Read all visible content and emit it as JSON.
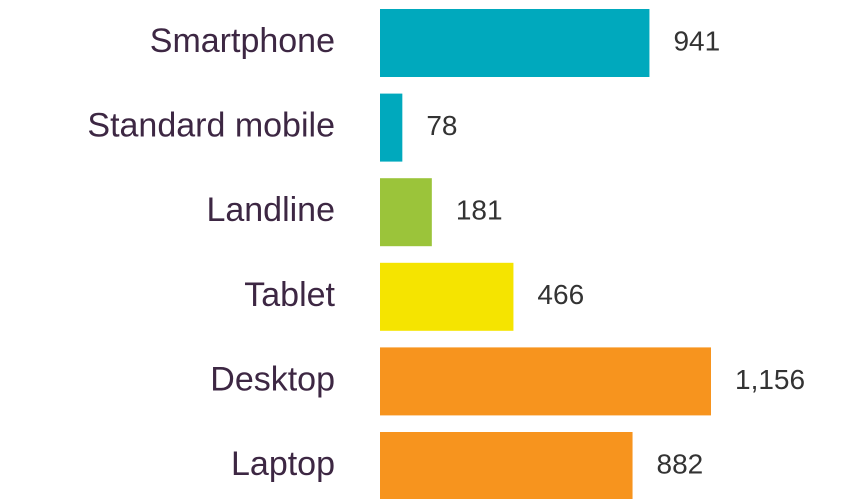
{
  "chart_data": {
    "type": "bar",
    "orientation": "horizontal",
    "categories": [
      "Smartphone",
      "Standard mobile",
      "Landline",
      "Tablet",
      "Desktop",
      "Laptop"
    ],
    "values": [
      941,
      78,
      181,
      466,
      1156,
      882
    ],
    "value_labels": [
      "941",
      "78",
      "181",
      "466",
      "1,156",
      "882"
    ],
    "colors": [
      "#00a9bd",
      "#00a9bd",
      "#9bc43a",
      "#f5e400",
      "#f7941e",
      "#f7941e"
    ]
  }
}
